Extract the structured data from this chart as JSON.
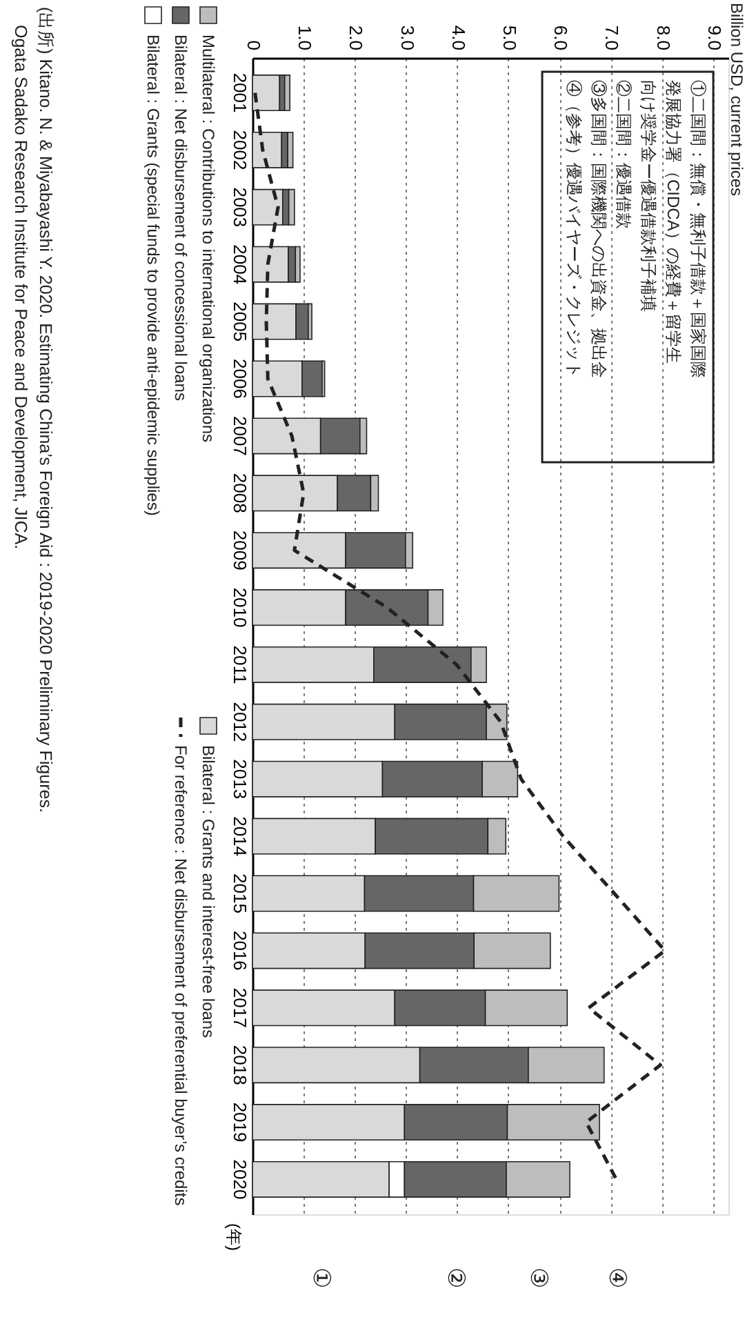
{
  "chart_data": {
    "type": "bar",
    "orientation": "horizontal",
    "stacked": true,
    "ylabel": "(年)",
    "categories": [
      "2001",
      "2002",
      "2003",
      "2004",
      "2005",
      "2006",
      "2007",
      "2008",
      "2009",
      "2010",
      "2011",
      "2012",
      "2013",
      "2014",
      "2015",
      "2016",
      "2017",
      "2018",
      "2019",
      "2020"
    ],
    "series": [
      {
        "name": "Bilateral : Grants and interest-free loans",
        "color": "#d9d9d9",
        "values": [
          0.53,
          0.57,
          0.59,
          0.7,
          0.85,
          0.97,
          1.33,
          1.66,
          1.82,
          1.82,
          2.37,
          2.78,
          2.54,
          2.4,
          2.19,
          2.2,
          2.78,
          3.27,
          2.97,
          2.67
        ]
      },
      {
        "name": "Bilateral : Grants (special funds to provide anti-epidemic supplies)",
        "color": "#ffffff",
        "values": [
          null,
          null,
          null,
          null,
          null,
          null,
          null,
          null,
          null,
          null,
          null,
          null,
          null,
          null,
          null,
          null,
          null,
          null,
          null,
          0.3
        ]
      },
      {
        "name": "Bilateral : Net disbursement of concessional loans",
        "color": "#666666",
        "values": [
          0.1,
          0.12,
          0.12,
          0.14,
          0.24,
          0.39,
          0.77,
          0.65,
          1.17,
          1.61,
          1.9,
          1.79,
          1.95,
          2.2,
          2.13,
          2.13,
          1.77,
          2.12,
          2.01,
          1.99
        ]
      },
      {
        "name": "Multilateral : Contributions to international organizations",
        "color": "#bdbdbd",
        "values": [
          0.1,
          0.1,
          0.11,
          0.09,
          0.07,
          0.05,
          0.13,
          0.15,
          0.14,
          0.29,
          0.3,
          0.4,
          0.69,
          0.35,
          1.67,
          1.49,
          1.6,
          1.48,
          1.8,
          1.24
        ]
      },
      {
        "name": "For reference : Net disbursement of preferential buyer’s credits",
        "type": "line",
        "line_style": "dashed",
        "color": "#222222",
        "values": [
          0.05,
          0.2,
          0.5,
          0.3,
          0.27,
          0.3,
          0.77,
          1.0,
          0.82,
          2.63,
          3.99,
          4.85,
          5.25,
          6.07,
          7.07,
          8.06,
          6.57,
          7.97,
          6.52,
          7.11
        ]
      }
    ],
    "xlim": [
      0,
      9.3
    ],
    "xticks": [
      0,
      {
        "value": 1,
        "label": "1.0"
      },
      {
        "value": 2,
        "label": "2.0"
      },
      {
        "value": 3,
        "label": "3.0"
      },
      {
        "value": 4,
        "label": "4.0"
      },
      {
        "value": 5,
        "label": "5.0"
      },
      {
        "value": 6,
        "label": "6.0"
      },
      {
        "value": 7,
        "label": "7.0"
      },
      {
        "value": 8,
        "label": "8.0"
      },
      {
        "value": 9,
        "label": "9.0"
      }
    ],
    "grid": "x",
    "legend": "left",
    "annotations": [
      "Billion USD, current prices",
      "①二国間：無償・無利子借款＋国家国際発展協力署（CIDCA）の経費＋留学生向け奨学金ー優遇借款利子補填",
      "②二国間：優遇借款",
      "③多国間：国際機関への出資金、拠出金",
      "④（参考）優遇バイヤーズ・クレジット",
      "①",
      "②",
      "③",
      "④",
      "(出所) Kitano. N. & Miyabayashi Y. 2020. Estimating China’s Foreign Aid : 2019-2020 Preliminary Figures.",
      "Ogata Sadako Research Institute for Peace and Development, JICA."
    ]
  }
}
